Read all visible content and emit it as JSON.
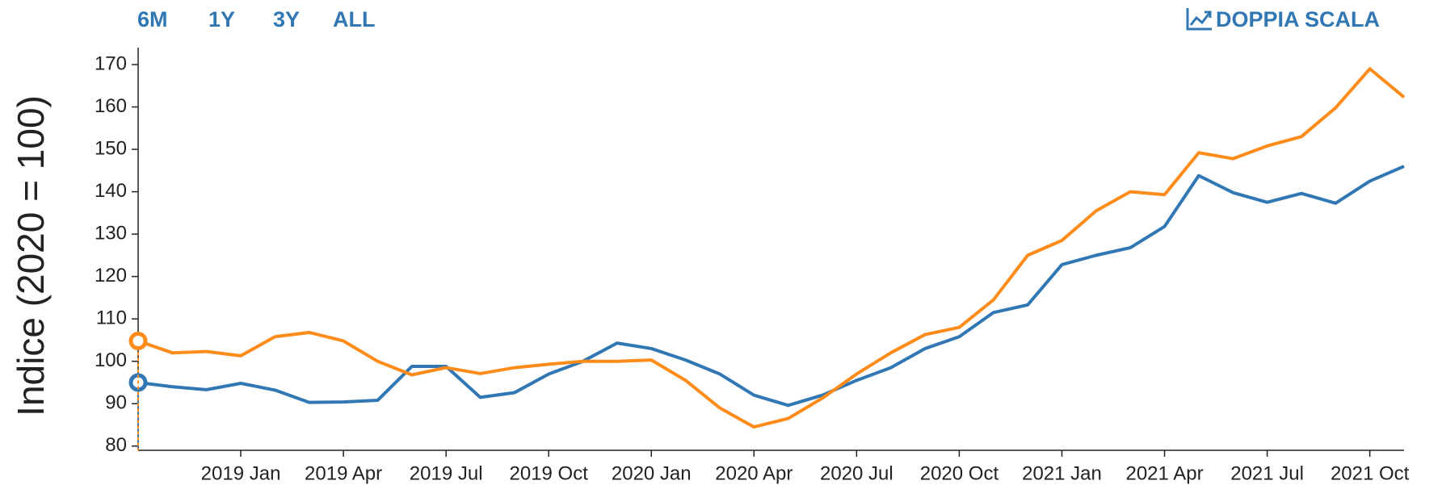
{
  "range_buttons": [
    "6M",
    "1Y",
    "3Y",
    "ALL"
  ],
  "scale_toggle": "DOPPIA SCALA",
  "chart_data": {
    "type": "line",
    "y_label": "Indice (2020 = 100)",
    "categories": [
      null,
      null,
      null,
      "2019 Jan",
      null,
      null,
      "2019 Apr",
      null,
      null,
      "2019 Jul",
      null,
      null,
      "2019 Oct",
      null,
      null,
      "2020 Jan",
      null,
      null,
      "2020 Apr",
      null,
      null,
      "2020 Jul",
      null,
      null,
      "2020 Oct",
      null,
      null,
      "2021 Jan",
      null,
      null,
      "2021 Apr",
      null,
      null,
      "2021 Jul",
      null,
      null,
      "2021 Oct",
      null
    ],
    "series": [
      {
        "color": "#3077b4",
        "values": [
          95,
          94,
          93.3,
          94.8,
          93.2,
          90.3,
          90.4,
          90.8,
          98.8,
          98.8,
          91.5,
          92.6,
          97,
          100,
          104.3,
          103,
          100.3,
          97,
          92,
          89.6,
          92,
          95.5,
          98.5,
          103,
          105.8,
          111.5,
          113.3,
          122.8,
          125,
          126.8,
          131.8,
          143.8,
          139.8,
          137.5,
          139.6,
          137.3,
          142.5,
          146
        ]
      },
      {
        "color": "#ff8c1a",
        "values": [
          104.8,
          102,
          102.3,
          101.3,
          105.8,
          106.8,
          104.8,
          100,
          96.8,
          98.5,
          97.1,
          98.5,
          99.3,
          100,
          100,
          100.3,
          95.5,
          89,
          84.5,
          86.5,
          91.3,
          97,
          102,
          106.3,
          108,
          114.5,
          125,
          128.5,
          135.5,
          140,
          139.3,
          149.2,
          147.8,
          150.8,
          153,
          159.8,
          169,
          162.3
        ]
      }
    ],
    "ylim": [
      79,
      174
    ],
    "yticks": [
      80,
      90,
      100,
      110,
      120,
      130,
      140,
      150,
      160,
      170
    ]
  }
}
